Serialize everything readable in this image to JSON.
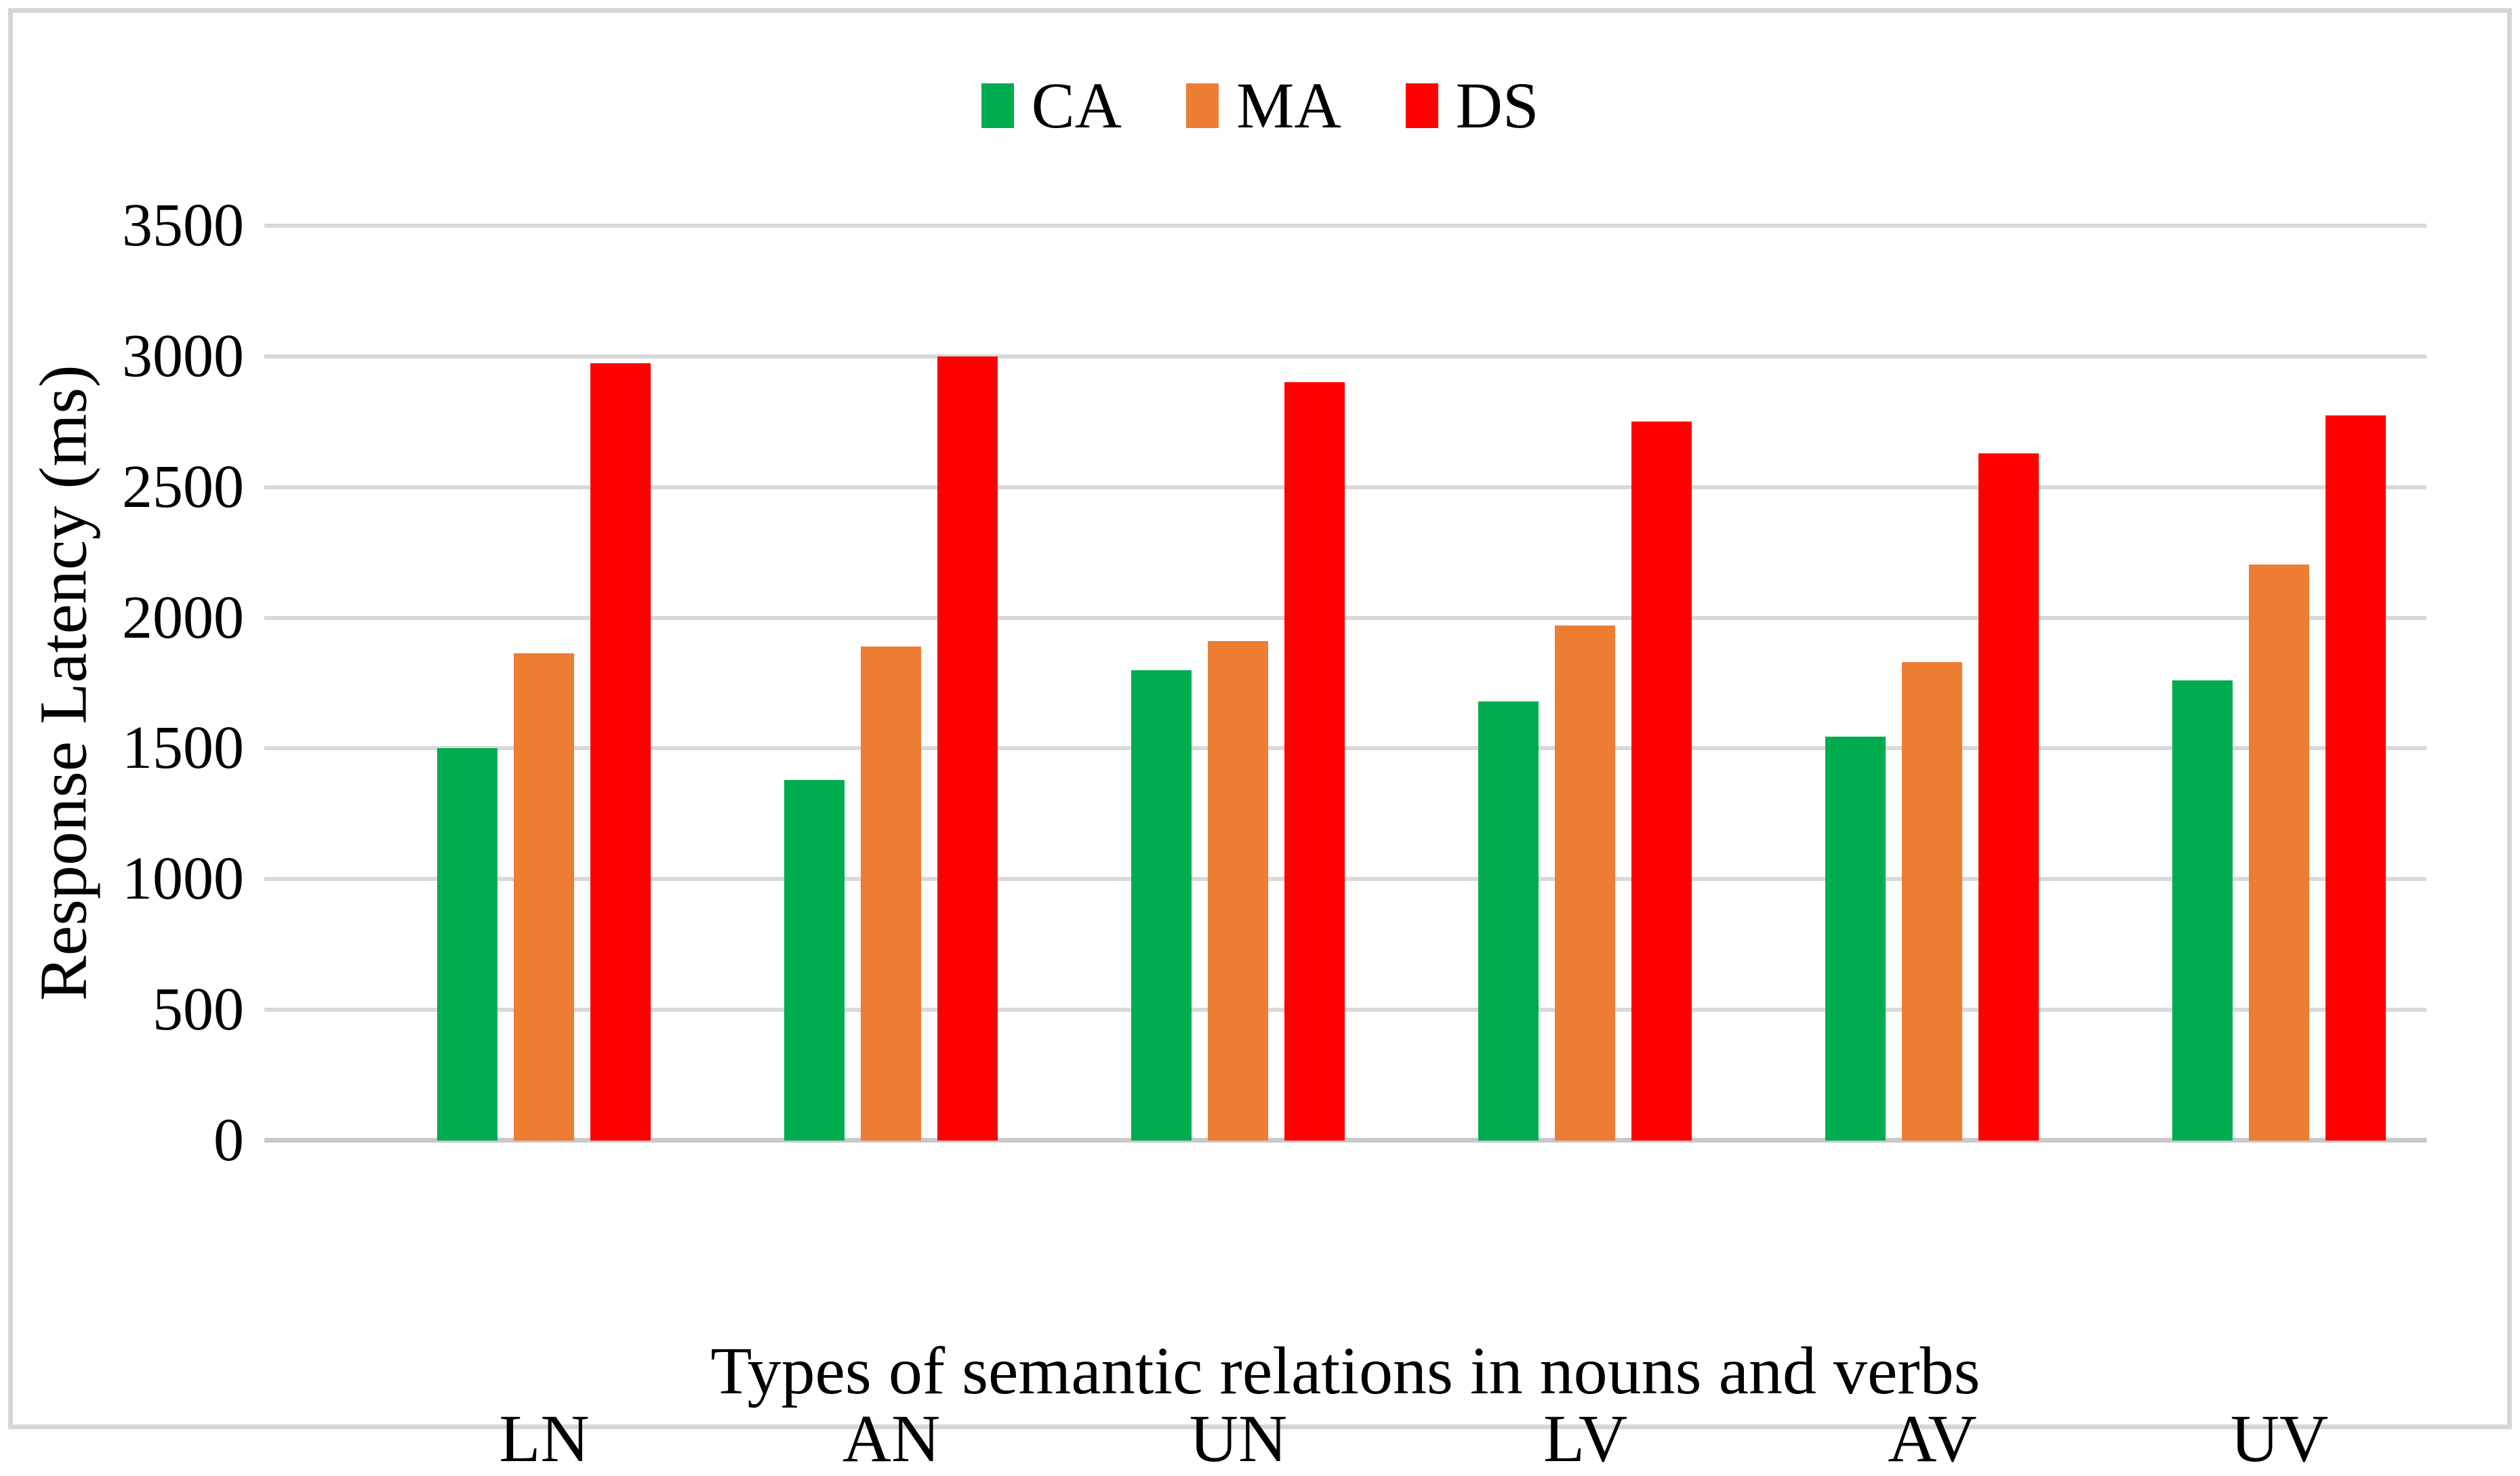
{
  "chart_data": {
    "type": "bar",
    "title": "",
    "categories": [
      "LN",
      "AN",
      "UN",
      "LV",
      "AV",
      "UV"
    ],
    "series": [
      {
        "name": "CA",
        "color": "#00ac50",
        "values": [
          1500,
          1380,
          1800,
          1680,
          1545,
          1760
        ]
      },
      {
        "name": "MA",
        "color": "#ec7d33",
        "values": [
          1865,
          1890,
          1910,
          1970,
          1830,
          2205
        ]
      },
      {
        "name": "DS",
        "color": "#ff0000",
        "values": [
          2975,
          3000,
          2900,
          2750,
          2630,
          2775
        ]
      }
    ],
    "xlabel": "Types of semantic relations in nouns and verbs",
    "ylabel": "Response Latency (ms)",
    "ylim": [
      0,
      3500
    ],
    "yticks": [
      0,
      500,
      1000,
      1500,
      2000,
      2500,
      3000,
      3500
    ],
    "grid": true,
    "legend_position": "top"
  },
  "style": {
    "gridline_color": "#d9d9d9",
    "axis_line_color": "#c8c8c8",
    "frame_color": "#d6d6d6",
    "text_color": "#000000",
    "background": "#ffffff"
  }
}
